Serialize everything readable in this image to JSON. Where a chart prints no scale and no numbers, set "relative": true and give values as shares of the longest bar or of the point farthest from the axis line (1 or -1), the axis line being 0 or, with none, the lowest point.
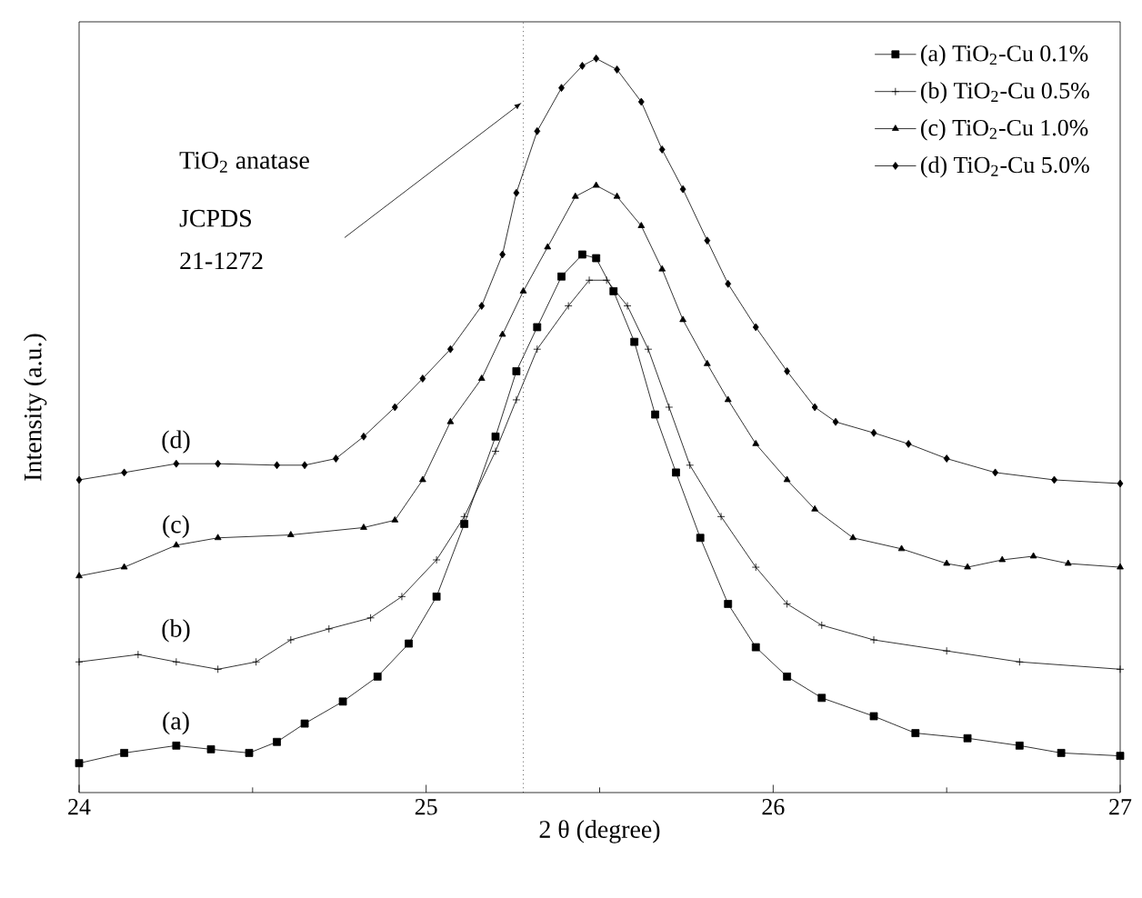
{
  "chart_data": {
    "type": "line",
    "relative": true,
    "xlabel": "2 θ (degree)",
    "ylabel": "Intensity (a.u.)",
    "xlim": [
      24,
      27
    ],
    "xticks": [
      24,
      25,
      26,
      27
    ],
    "tick_labels": "x",
    "legend": "top right",
    "series": [
      {
        "name": "(a) TiO$_{2}$-Cu 0.1%",
        "color": "#000000",
        "marker": "square",
        "x": [
          24.0,
          24.13,
          24.28,
          24.38,
          24.49,
          24.57,
          24.65,
          24.76,
          24.86,
          24.95,
          25.03,
          25.11,
          25.2,
          25.26,
          25.32,
          25.39,
          25.45,
          25.49,
          25.54,
          25.6,
          25.66,
          25.72,
          25.79,
          25.87,
          25.95,
          26.04,
          26.14,
          26.29,
          26.41,
          26.56,
          26.71,
          26.83,
          27.0
        ],
        "values": [
          0.04,
          0.054,
          0.064,
          0.059,
          0.054,
          0.069,
          0.094,
          0.124,
          0.158,
          0.203,
          0.267,
          0.366,
          0.485,
          0.574,
          0.634,
          0.703,
          0.733,
          0.728,
          0.683,
          0.614,
          0.515,
          0.436,
          0.347,
          0.257,
          0.198,
          0.158,
          0.129,
          0.104,
          0.081,
          0.074,
          0.064,
          0.054,
          0.05
        ]
      },
      {
        "name": "(b) TiO$_{2}$-Cu 0.5%",
        "color": "#000000",
        "marker": "cross",
        "x": [
          24.0,
          24.17,
          24.28,
          24.4,
          24.51,
          24.61,
          24.72,
          24.84,
          24.93,
          25.03,
          25.11,
          25.2,
          25.26,
          25.32,
          25.41,
          25.47,
          25.52,
          25.58,
          25.64,
          25.7,
          25.76,
          25.85,
          25.95,
          26.04,
          26.14,
          26.29,
          26.5,
          26.71,
          27.0
        ],
        "values": [
          0.178,
          0.188,
          0.178,
          0.168,
          0.178,
          0.208,
          0.223,
          0.238,
          0.267,
          0.317,
          0.376,
          0.465,
          0.535,
          0.604,
          0.663,
          0.698,
          0.698,
          0.663,
          0.604,
          0.525,
          0.446,
          0.376,
          0.307,
          0.257,
          0.228,
          0.208,
          0.193,
          0.178,
          0.168
        ]
      },
      {
        "name": "(c) TiO$_{2}$-Cu 1.0%",
        "color": "#000000",
        "marker": "triangle",
        "x": [
          24.0,
          24.13,
          24.28,
          24.4,
          24.61,
          24.82,
          24.91,
          24.99,
          25.07,
          25.16,
          25.22,
          25.28,
          25.35,
          25.43,
          25.49,
          25.55,
          25.62,
          25.68,
          25.74,
          25.81,
          25.87,
          25.95,
          26.04,
          26.12,
          26.23,
          26.37,
          26.5,
          26.56,
          26.66,
          26.75,
          26.85,
          27.0
        ],
        "values": [
          0.295,
          0.307,
          0.337,
          0.347,
          0.351,
          0.361,
          0.371,
          0.426,
          0.505,
          0.564,
          0.624,
          0.683,
          0.743,
          0.812,
          0.827,
          0.812,
          0.772,
          0.713,
          0.644,
          0.584,
          0.535,
          0.475,
          0.426,
          0.386,
          0.347,
          0.332,
          0.312,
          0.307,
          0.317,
          0.322,
          0.312,
          0.307
        ]
      },
      {
        "name": "(d) TiO$_{2}$-Cu 5.0%",
        "color": "#000000",
        "marker": "diamond",
        "x": [
          24.0,
          24.13,
          24.28,
          24.4,
          24.57,
          24.65,
          24.74,
          24.82,
          24.91,
          24.99,
          25.07,
          25.16,
          25.22,
          25.26,
          25.32,
          25.39,
          25.45,
          25.49,
          25.55,
          25.62,
          25.68,
          25.74,
          25.81,
          25.87,
          25.95,
          26.04,
          26.12,
          26.18,
          26.29,
          26.39,
          26.5,
          26.64,
          26.81,
          27.0
        ],
        "values": [
          0.426,
          0.436,
          0.448,
          0.448,
          0.446,
          0.446,
          0.455,
          0.485,
          0.525,
          0.564,
          0.604,
          0.663,
          0.733,
          0.817,
          0.901,
          0.96,
          0.99,
          1.0,
          0.985,
          0.941,
          0.876,
          0.822,
          0.752,
          0.693,
          0.634,
          0.574,
          0.525,
          0.505,
          0.49,
          0.475,
          0.455,
          0.436,
          0.426,
          0.421
        ]
      }
    ],
    "ref_lines": [
      {
        "axis": "x",
        "value": 25.28,
        "line_style": "dotted"
      }
    ],
    "annotations": [
      "TiO$_{2}$ anatase",
      "JCPDS",
      "21-1272",
      "(a)",
      "(b)",
      "(c)",
      "(d)"
    ]
  }
}
